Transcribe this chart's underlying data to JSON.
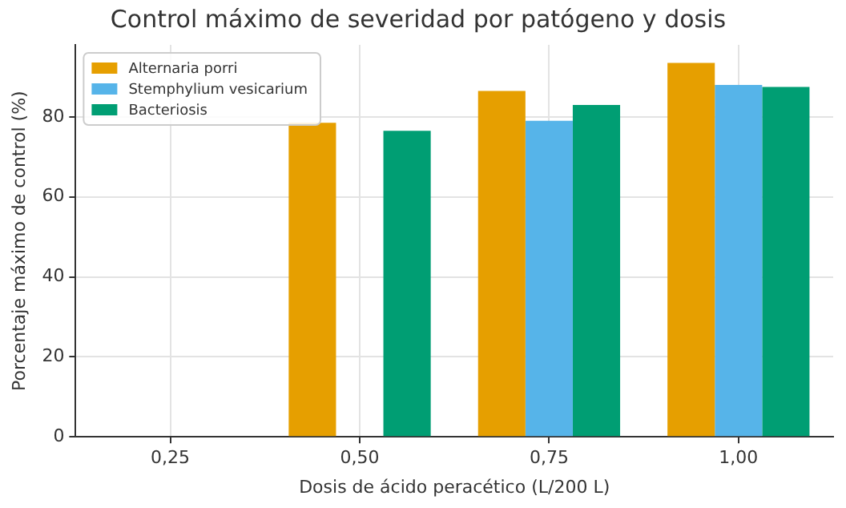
{
  "chart_data": {
    "type": "bar",
    "title": "Control máximo de severidad por patógeno y dosis",
    "xlabel": "Dosis de ácido peracético (L/200 L)",
    "ylabel": "Porcentaje máximo de control (%)",
    "categories": [
      "0,25",
      "0,50",
      "0,75",
      "1,00"
    ],
    "series": [
      {
        "name": "Alternaria porri",
        "color": "#e69f00",
        "values": [
          null,
          78.5,
          86.5,
          93.5
        ]
      },
      {
        "name": "Stemphylium vesicarium",
        "color": "#56b4e9",
        "values": [
          null,
          null,
          79,
          88
        ]
      },
      {
        "name": "Bacteriosis",
        "color": "#009e73",
        "values": [
          null,
          76.5,
          83,
          87.5
        ]
      }
    ],
    "ylim": [
      0,
      98
    ],
    "yticks": [
      0,
      20,
      40,
      60,
      80
    ],
    "grid": true,
    "legend": "top left"
  }
}
